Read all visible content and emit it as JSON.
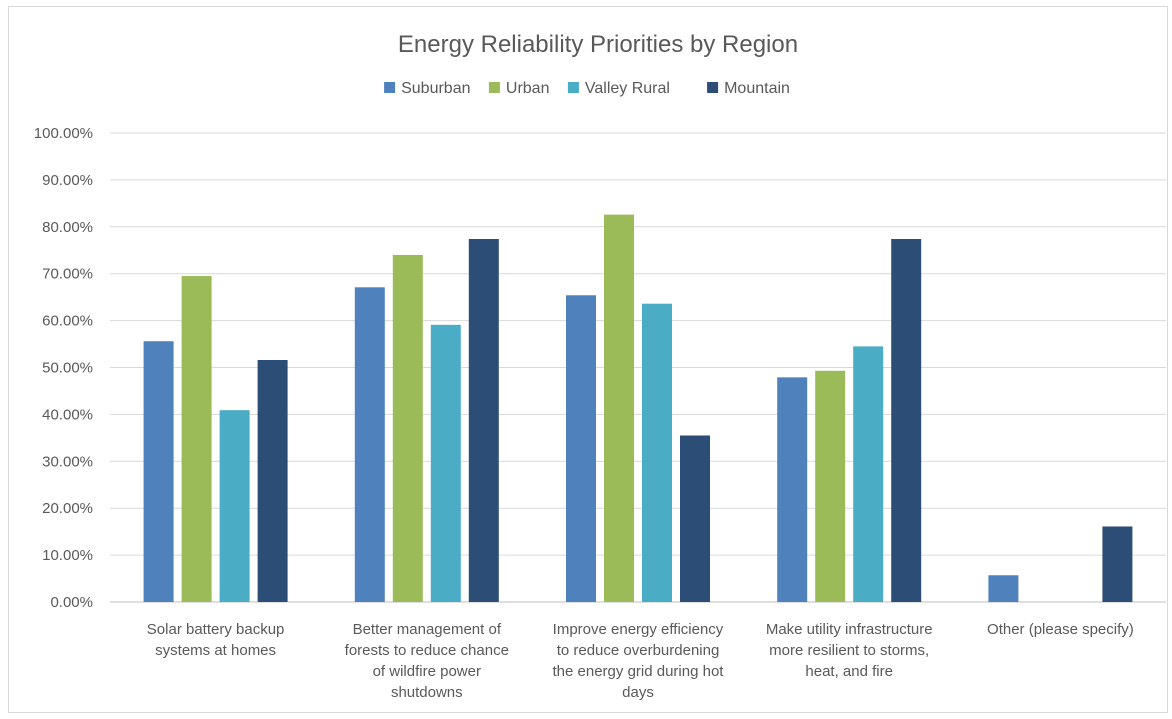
{
  "chart_data": {
    "type": "bar",
    "title": "Energy Reliability Priorities by Region",
    "xlabel": "",
    "ylabel": "",
    "ylim": [
      0,
      1
    ],
    "y_tick_labels": [
      "0.00%",
      "10.00%",
      "20.00%",
      "30.00%",
      "40.00%",
      "50.00%",
      "60.00%",
      "70.00%",
      "80.00%",
      "90.00%",
      "100.00%"
    ],
    "grid": true,
    "legend_position": "top",
    "categories": [
      [
        "Solar battery backup",
        "systems at homes"
      ],
      [
        "Better management of",
        "forests to reduce chance",
        "of wildfire power",
        "shutdowns"
      ],
      [
        "Improve energy efficiency",
        "to reduce overburdening",
        "the energy grid during hot",
        "days"
      ],
      [
        "Make utility infrastructure",
        "more resilient to storms,",
        "heat, and fire"
      ],
      [
        "Other (please specify)"
      ]
    ],
    "series": [
      {
        "name": "Suburban",
        "color": "#4f81bd",
        "values": [
          0.556,
          0.671,
          0.654,
          0.479,
          0.057
        ]
      },
      {
        "name": "Urban",
        "color": "#9bbb59",
        "values": [
          0.695,
          0.74,
          0.826,
          0.493,
          0.0
        ]
      },
      {
        "name": "Valley Rural",
        "color": "#4bacc6",
        "values": [
          0.409,
          0.591,
          0.636,
          0.545,
          0.0
        ]
      },
      {
        "name": "Mountain",
        "color": "#2c4d75",
        "values": [
          0.516,
          0.774,
          0.355,
          0.774,
          0.161
        ]
      }
    ]
  }
}
